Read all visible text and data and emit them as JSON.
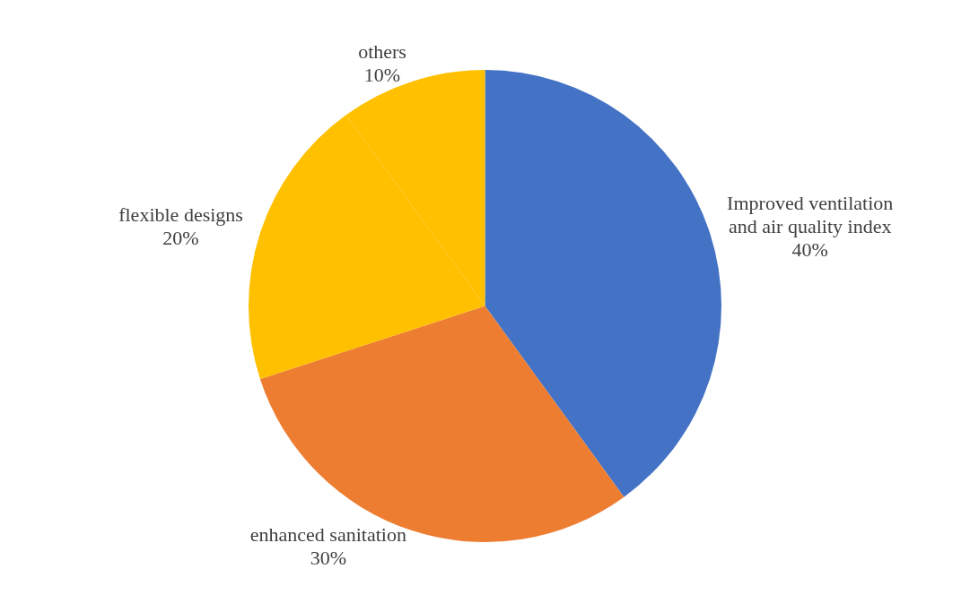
{
  "chart_data": {
    "type": "pie",
    "categories": [
      "Improved ventilation and air quality index",
      "enhanced sanitation",
      "flexible designs",
      "others"
    ],
    "values": [
      40,
      30,
      20,
      10
    ],
    "colors": [
      "#4472c4",
      "#ed7d31",
      "#ffc000",
      "#ffc000"
    ],
    "value_labels": [
      "40%",
      "30%",
      "20%",
      "10%"
    ],
    "legend": false
  }
}
